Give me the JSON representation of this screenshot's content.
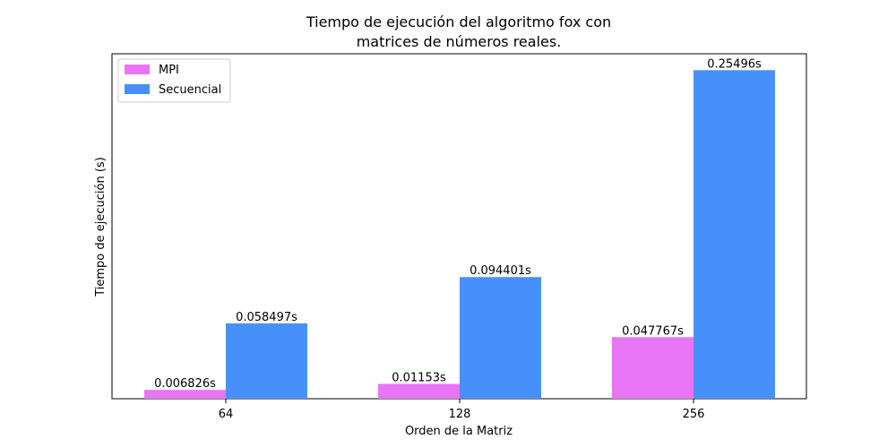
{
  "chart_data": {
    "type": "bar",
    "title_lines": [
      "Tiempo de ejecución del algoritmo fox con",
      "matrices de números reales."
    ],
    "xlabel": "Orden de la Matriz",
    "ylabel": "Tiempo de ejecución (s)",
    "categories": [
      "64",
      "128",
      "256"
    ],
    "series": [
      {
        "name": "MPI",
        "color": "#e875f5",
        "values": [
          0.006826,
          0.01153,
          0.047767
        ],
        "labels": [
          "0.006826s",
          "0.01153s",
          "0.047767s"
        ]
      },
      {
        "name": "Secuencial",
        "color": "#4790fb",
        "values": [
          0.058497,
          0.094401,
          0.25496
        ],
        "labels": [
          "0.058497s",
          "0.094401s",
          "0.25496s"
        ]
      }
    ],
    "ylim": [
      0,
      0.2677
    ],
    "y_ticks_visible": false,
    "grid": false,
    "legend_position": "top-left"
  }
}
